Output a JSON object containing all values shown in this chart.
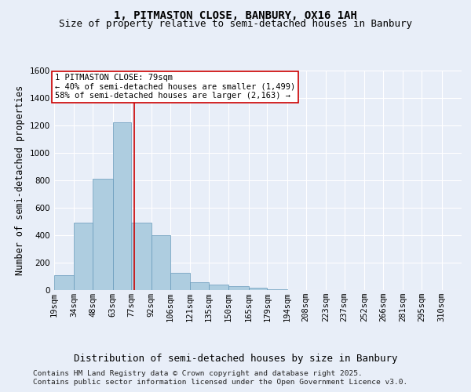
{
  "title_line1": "1, PITMASTON CLOSE, BANBURY, OX16 1AH",
  "title_line2": "Size of property relative to semi-detached houses in Banbury",
  "xlabel": "Distribution of semi-detached houses by size in Banbury",
  "ylabel": "Number of semi-detached properties",
  "footer_line1": "Contains HM Land Registry data © Crown copyright and database right 2025.",
  "footer_line2": "Contains public sector information licensed under the Open Government Licence v3.0.",
  "property_label": "1 PITMASTON CLOSE: 79sqm",
  "pct_smaller": "40% of semi-detached houses are smaller (1,499)",
  "pct_larger": "58% of semi-detached houses are larger (2,163)",
  "bin_labels": [
    "19sqm",
    "34sqm",
    "48sqm",
    "63sqm",
    "77sqm",
    "92sqm",
    "106sqm",
    "121sqm",
    "135sqm",
    "150sqm",
    "165sqm",
    "179sqm",
    "194sqm",
    "208sqm",
    "223sqm",
    "237sqm",
    "252sqm",
    "266sqm",
    "281sqm",
    "295sqm",
    "310sqm"
  ],
  "bin_lefts": [
    19,
    34,
    48,
    63,
    77,
    92,
    106,
    121,
    135,
    150,
    165,
    179,
    194,
    208,
    223,
    237,
    252,
    266,
    281,
    295
  ],
  "bin_widths": [
    15,
    14,
    15,
    14,
    15,
    14,
    15,
    14,
    15,
    15,
    14,
    15,
    14,
    15,
    14,
    15,
    14,
    15,
    14,
    15
  ],
  "bar_heights": [
    110,
    490,
    810,
    1220,
    490,
    400,
    125,
    55,
    40,
    30,
    15,
    5,
    0,
    0,
    0,
    0,
    0,
    0,
    0,
    0
  ],
  "bar_color": "#aecde0",
  "bar_edge_color": "#6699bb",
  "background_color": "#e8eef8",
  "grid_color": "#ffffff",
  "vline_color": "#cc0000",
  "vline_x": 79,
  "xlim_left": 19,
  "xlim_right": 325,
  "ylim": [
    0,
    1600
  ],
  "yticks": [
    0,
    200,
    400,
    600,
    800,
    1000,
    1200,
    1400,
    1600
  ],
  "title_fontsize": 10,
  "subtitle_fontsize": 9,
  "axis_label_fontsize": 8.5,
  "tick_fontsize": 7.5,
  "footer_fontsize": 6.8,
  "annot_fontsize": 7.5
}
